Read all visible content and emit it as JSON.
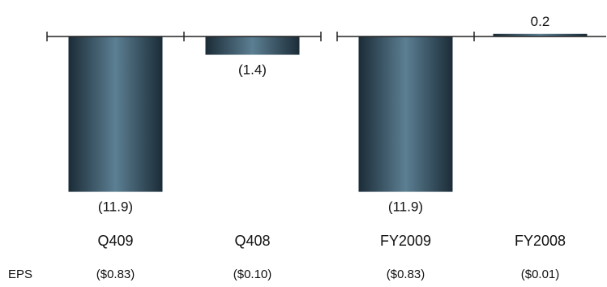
{
  "chart_data": [
    {
      "type": "bar",
      "categories": [
        "Q409",
        "Q408"
      ],
      "values": [
        -11.9,
        -1.4
      ],
      "value_labels": [
        "(11.9)",
        "(1.4)"
      ],
      "eps_labels": [
        "($0.83)",
        "($0.10)"
      ],
      "title": "",
      "xlabel": "",
      "ylabel": "",
      "ylim": [
        -12.5,
        0.5
      ],
      "grid": false
    },
    {
      "type": "bar",
      "categories": [
        "FY2009",
        "FY2008"
      ],
      "values": [
        -11.9,
        0.2
      ],
      "value_labels": [
        "(11.9)",
        "0.2"
      ],
      "eps_labels": [
        "($0.83)",
        "($0.01)"
      ],
      "title": "",
      "xlabel": "",
      "ylabel": "",
      "ylim": [
        -12.5,
        0.5
      ],
      "grid": false
    }
  ],
  "eps_row_label": "EPS",
  "colors": {
    "bar_dark": "#1b2c37",
    "bar_light": "#5c7f93",
    "axis": "#222222",
    "text": "#111111"
  }
}
